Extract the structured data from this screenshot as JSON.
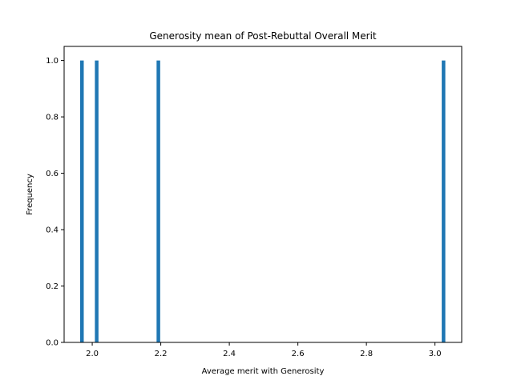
{
  "chart_data": {
    "type": "bar",
    "title": "Generosity mean of Post-Rebuttal Overall Merit",
    "xlabel": "Average merit with Generosity",
    "ylabel": "Frequency",
    "xlim": [
      1.918,
      3.078
    ],
    "ylim": [
      0.0,
      1.05
    ],
    "xticks": [
      "2.0",
      "2.2",
      "2.4",
      "2.6",
      "2.8",
      "3.0"
    ],
    "yticks": [
      "0.0",
      "0.2",
      "0.4",
      "0.6",
      "0.8",
      "1.0"
    ],
    "bar_width": 0.0105,
    "bars": [
      {
        "x": 1.97,
        "value": 1.0
      },
      {
        "x": 2.013,
        "value": 1.0
      },
      {
        "x": 2.193,
        "value": 1.0
      },
      {
        "x": 3.025,
        "value": 1.0
      }
    ],
    "color": "#1f77b4",
    "grid": false
  }
}
